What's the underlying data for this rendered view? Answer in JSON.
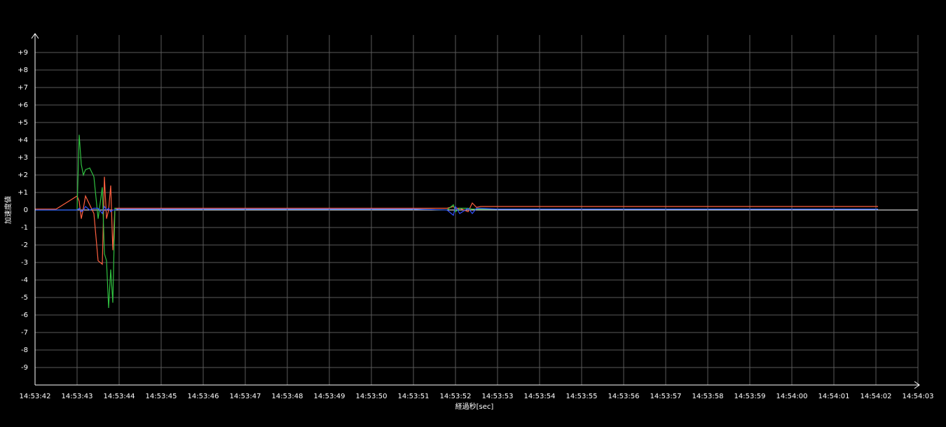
{
  "chart_data": {
    "type": "line",
    "xlabel": "経過秒[sec]",
    "ylabel": "加速度値",
    "x": [
      0,
      0.5,
      1.0,
      1.05,
      1.1,
      1.15,
      1.2,
      1.3,
      1.4,
      1.5,
      1.6,
      1.65,
      1.7,
      1.75,
      1.8,
      1.85,
      1.9,
      1.95,
      2.0,
      2.5,
      3,
      4,
      5,
      6,
      7,
      8,
      9,
      9.8,
      9.95,
      10.0,
      10.1,
      10.3,
      10.4,
      10.5,
      10.6,
      11,
      12,
      13,
      14,
      15,
      16,
      17,
      18,
      19,
      20.05
    ],
    "series": [
      {
        "color": "#ff6040",
        "values": [
          0.05,
          0.05,
          0.8,
          0.5,
          -0.5,
          0.1,
          0.8,
          0.3,
          -0.2,
          -2.9,
          -3.1,
          1.9,
          -0.5,
          0,
          1.4,
          -2.3,
          0.1,
          0.1,
          0.1,
          0.1,
          0.1,
          0.1,
          0.1,
          0.1,
          0.1,
          0.1,
          0.1,
          0.1,
          0.2,
          0.1,
          0.1,
          -0.1,
          0.4,
          0.15,
          0.2,
          0.2,
          0.2,
          0.2,
          0.2,
          0.2,
          0.2,
          0.2,
          0.2,
          0.2,
          0.2
        ]
      },
      {
        "color": "#30c040",
        "values": [
          0,
          0,
          0,
          4.3,
          2.6,
          2.0,
          2.3,
          2.4,
          1.9,
          -0.5,
          1.3,
          -2.5,
          -2.9,
          -5.6,
          -3.4,
          -5.3,
          0.1,
          0.05,
          0.05,
          0.05,
          0.05,
          0.05,
          0.05,
          0.05,
          0.05,
          0.05,
          0.05,
          0,
          0.3,
          -0.1,
          0.1,
          0.1,
          0.05,
          0.05,
          0.05,
          0.05,
          0.05,
          0.05,
          0.05,
          0.05,
          0.05,
          0.05,
          0.05,
          0.05,
          0.05
        ]
      },
      {
        "color": "#3050ff",
        "values": [
          0,
          0,
          0,
          0.1,
          -0.1,
          0,
          0.2,
          0,
          0.1,
          0.1,
          -0.2,
          0.2,
          0,
          0.1,
          -0.1,
          0,
          0,
          0.05,
          0.05,
          0.05,
          0.05,
          0.05,
          0.05,
          0.05,
          0.05,
          0.05,
          0.05,
          0,
          -0.3,
          0.2,
          -0.2,
          0.1,
          -0.2,
          0.1,
          0.1,
          0.05,
          0.05,
          0.05,
          0.05,
          0.05,
          0.05,
          0.05,
          0.05,
          0.05,
          0.05
        ]
      }
    ],
    "xlim": [
      0,
      21
    ],
    "xticks": [
      {
        "value": 0,
        "label": "14:53:42"
      },
      {
        "value": 1,
        "label": "14:53:43"
      },
      {
        "value": 2,
        "label": "14:53:44"
      },
      {
        "value": 3,
        "label": "14:53:45"
      },
      {
        "value": 4,
        "label": "14:53:46"
      },
      {
        "value": 5,
        "label": "14:53:47"
      },
      {
        "value": 6,
        "label": "14:53:48"
      },
      {
        "value": 7,
        "label": "14:53:49"
      },
      {
        "value": 8,
        "label": "14:53:50"
      },
      {
        "value": 9,
        "label": "14:53:51"
      },
      {
        "value": 10,
        "label": "14:53:52"
      },
      {
        "value": 11,
        "label": "14:53:53"
      },
      {
        "value": 12,
        "label": "14:53:54"
      },
      {
        "value": 13,
        "label": "14:53:55"
      },
      {
        "value": 14,
        "label": "14:53:56"
      },
      {
        "value": 15,
        "label": "14:53:57"
      },
      {
        "value": 16,
        "label": "14:53:58"
      },
      {
        "value": 17,
        "label": "14:53:59"
      },
      {
        "value": 18,
        "label": "14:54:00"
      },
      {
        "value": 19,
        "label": "14:54:01"
      },
      {
        "value": 20,
        "label": "14:54:02"
      },
      {
        "value": 21,
        "label": "14:54:03"
      }
    ],
    "ylim": [
      -10,
      10
    ],
    "yticks": [
      -9,
      -8,
      -7,
      -6,
      -5,
      -4,
      -3,
      -2,
      -1,
      0,
      {
        "value": 1,
        "label": "+1"
      },
      {
        "value": 2,
        "label": "+2"
      },
      {
        "value": 3,
        "label": "+3"
      },
      {
        "value": 4,
        "label": "+4"
      },
      {
        "value": 5,
        "label": "+5"
      },
      {
        "value": 6,
        "label": "+6"
      },
      {
        "value": 7,
        "label": "+7"
      },
      {
        "value": 8,
        "label": "+8"
      },
      {
        "value": 9,
        "label": "+9"
      }
    ],
    "grid": true
  }
}
